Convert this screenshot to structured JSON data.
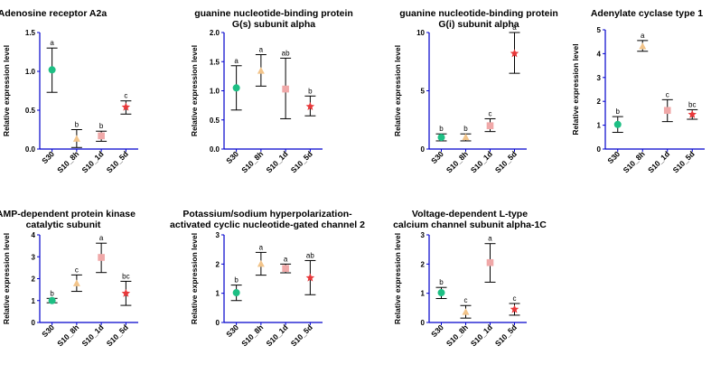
{
  "colors": {
    "axis": "#0000cc",
    "S30": "#1dbf84",
    "S10_8h": "#f2c48a",
    "S10_1d": "#f0a8a8",
    "S10_5d": "#e8383a"
  },
  "chart_data": [
    {
      "type": "scatter",
      "title": [
        "Adenosine receptor A2a"
      ],
      "ylabel": "Relative expression level",
      "categories": [
        "S30",
        "S10_8h",
        "S10_1d",
        "S10_5d"
      ],
      "ylim": [
        0,
        1.5
      ],
      "yticks": [
        "0.0",
        "0.5",
        "1.0",
        "1.5"
      ],
      "values": [
        1.02,
        0.13,
        0.17,
        0.54
      ],
      "err_low": [
        0.73,
        0.02,
        0.1,
        0.45
      ],
      "err_high": [
        1.3,
        0.25,
        0.23,
        0.62
      ],
      "letters": [
        "a",
        "b",
        "b",
        "c"
      ]
    },
    {
      "type": "scatter",
      "title": [
        "guanine nucleotide-binding protein",
        "G(s) subunit alpha"
      ],
      "ylabel": "Relative expression level",
      "categories": [
        "S30",
        "S10_8h",
        "S10_1d",
        "S10_5d"
      ],
      "ylim": [
        0,
        2.0
      ],
      "yticks": [
        "0.0",
        "0.5",
        "1.0",
        "1.5",
        "2.0"
      ],
      "values": [
        1.05,
        1.34,
        1.03,
        0.73
      ],
      "err_low": [
        0.67,
        1.08,
        0.52,
        0.57
      ],
      "err_high": [
        1.43,
        1.62,
        1.56,
        0.91
      ],
      "letters": [
        "a",
        "a",
        "ab",
        "b"
      ]
    },
    {
      "type": "scatter",
      "title": [
        "guanine nucleotide-binding protein",
        "G(i) subunit alpha"
      ],
      "ylabel": "Relative expression level",
      "categories": [
        "S30",
        "S10_8h",
        "S10_1d",
        "S10_5d"
      ],
      "ylim": [
        0,
        10
      ],
      "yticks": [
        "0",
        "5",
        "10"
      ],
      "values": [
        1.0,
        1.0,
        2.0,
        8.2
      ],
      "err_low": [
        0.7,
        0.7,
        1.5,
        6.5
      ],
      "err_high": [
        1.3,
        1.3,
        2.6,
        10.0
      ],
      "letters": [
        "b",
        "b",
        "c",
        "a"
      ]
    },
    {
      "type": "scatter",
      "title": [
        "Adenylate cyclase type 1"
      ],
      "ylabel": "Relative expression level",
      "categories": [
        "S30",
        "S10_8h",
        "S10_1d",
        "S10_5d"
      ],
      "ylim": [
        0,
        5
      ],
      "yticks": [
        "0",
        "1",
        "2",
        "3",
        "4",
        "5"
      ],
      "values": [
        1.03,
        4.3,
        1.62,
        1.45
      ],
      "err_low": [
        0.7,
        4.1,
        1.15,
        1.25
      ],
      "err_high": [
        1.36,
        4.55,
        2.07,
        1.65
      ],
      "letters": [
        "b",
        "a",
        "c",
        "bc"
      ]
    },
    {
      "type": "scatter",
      "title": [
        "cAMP-dependent protein kinase",
        "catalytic subunit"
      ],
      "ylabel": "Relative expression level",
      "categories": [
        "S30",
        "S10_8h",
        "S10_1d",
        "S10_5d"
      ],
      "ylim": [
        0,
        4
      ],
      "yticks": [
        "0",
        "1",
        "2",
        "3",
        "4"
      ],
      "values": [
        1.0,
        1.78,
        2.97,
        1.33
      ],
      "err_low": [
        0.9,
        1.42,
        2.28,
        0.78
      ],
      "err_high": [
        1.1,
        2.17,
        3.62,
        1.88
      ],
      "letters": [
        "b",
        "c",
        "a",
        "bc"
      ]
    },
    {
      "type": "scatter",
      "title": [
        "Potassium/sodium hyperpolarization-",
        "activated cyclic nucleotide-gated channel 2"
      ],
      "ylabel": "Relative expression level",
      "categories": [
        "S30",
        "S10_8h",
        "S10_1d",
        "S10_5d"
      ],
      "ylim": [
        0,
        3
      ],
      "yticks": [
        "0",
        "1",
        "2",
        "3"
      ],
      "values": [
        1.02,
        2.0,
        1.85,
        1.53
      ],
      "err_low": [
        0.75,
        1.62,
        1.7,
        0.95
      ],
      "err_high": [
        1.28,
        2.4,
        2.0,
        2.12
      ],
      "letters": [
        "b",
        "a",
        "a",
        "ab"
      ]
    },
    {
      "type": "scatter",
      "title": [
        "Voltage-dependent L-type",
        "calcium channel subunit alpha-1C"
      ],
      "ylabel": "Relative expression level",
      "categories": [
        "S30",
        "S10_8h",
        "S10_1d",
        "S10_5d"
      ],
      "ylim": [
        0,
        3
      ],
      "yticks": [
        "0",
        "1",
        "2",
        "3"
      ],
      "values": [
        1.02,
        0.35,
        2.05,
        0.45
      ],
      "err_low": [
        0.82,
        0.15,
        1.38,
        0.25
      ],
      "err_high": [
        1.2,
        0.58,
        2.7,
        0.65
      ],
      "letters": [
        "b",
        "c",
        "a",
        "c"
      ]
    }
  ]
}
